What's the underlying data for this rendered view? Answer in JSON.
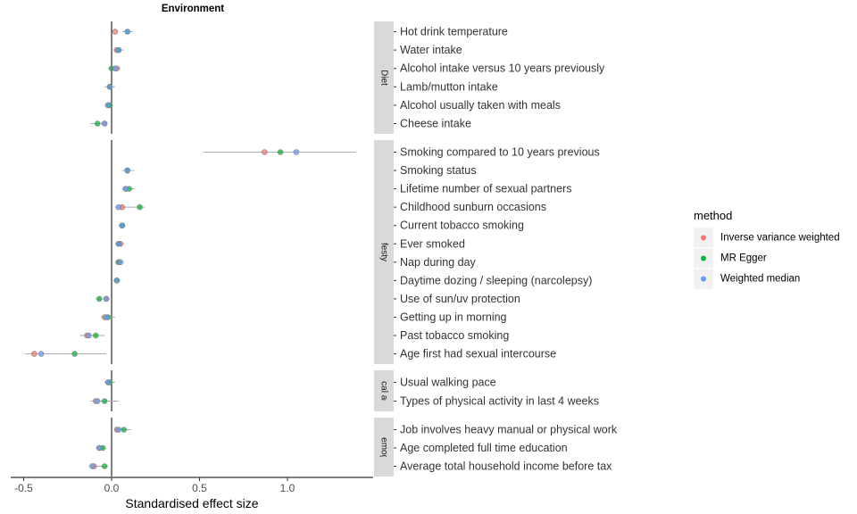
{
  "chart_data": {
    "type": "scatter",
    "title": "Environment",
    "xlabel": "Standardised effect size",
    "ylabel": "",
    "xlim": [
      -0.57,
      1.48
    ],
    "xticks": [
      -0.5,
      0.0,
      0.5,
      1.0
    ],
    "xtick_labels": [
      "-0.5",
      "0.0",
      "0.5",
      "1.0"
    ],
    "legend": {
      "title": "method",
      "placement": "right",
      "entries": [
        {
          "label": "Inverse variance weighted",
          "color": "#F8766D"
        },
        {
          "label": "MR Egger",
          "color": "#00BA38"
        },
        {
          "label": "Weighted median",
          "color": "#619CFF"
        }
      ]
    },
    "panels": [
      {
        "strip": "Diet",
        "rows": [
          {
            "label": "Hot drink temperature",
            "ivw": 0.02,
            "egger": 0.09,
            "wm": 0.09,
            "lo": 0.06,
            "hi": 0.12
          },
          {
            "label": "Water intake",
            "ivw": 0.03,
            "egger": 0.04,
            "wm": 0.04,
            "lo": 0.01,
            "hi": 0.07
          },
          {
            "label": "Alcohol intake versus 10 years previously",
            "ivw": 0.03,
            "egger": -0.0,
            "wm": 0.02,
            "lo": -0.02,
            "hi": 0.05
          },
          {
            "label": "Lamb/mutton intake",
            "ivw": -0.01,
            "egger": -0.01,
            "wm": -0.01,
            "lo": -0.04,
            "hi": 0.02
          },
          {
            "label": "Alcohol usually taken with meals",
            "ivw": -0.02,
            "egger": -0.01,
            "wm": -0.02,
            "lo": -0.04,
            "hi": 0.01
          },
          {
            "label": "Cheese intake",
            "ivw": -0.04,
            "egger": -0.08,
            "wm": -0.04,
            "lo": -0.12,
            "hi": -0.03
          }
        ]
      },
      {
        "strip": "Lifestyle",
        "rows": [
          {
            "label": "Smoking compared to 10 years previous",
            "ivw": 0.87,
            "egger": 0.96,
            "wm": 1.05,
            "lo": 0.52,
            "hi": 1.39
          },
          {
            "label": "Smoking status",
            "ivw": 0.09,
            "egger": 0.09,
            "wm": 0.09,
            "lo": 0.06,
            "hi": 0.13
          },
          {
            "label": "Lifetime number of sexual partners",
            "ivw": 0.08,
            "egger": 0.1,
            "wm": 0.08,
            "lo": 0.06,
            "hi": 0.13
          },
          {
            "label": "Childhood sunburn occasions",
            "ivw": 0.06,
            "egger": 0.16,
            "wm": 0.04,
            "lo": 0.02,
            "hi": 0.19
          },
          {
            "label": "Current tobacco smoking",
            "ivw": 0.06,
            "egger": 0.06,
            "wm": 0.06,
            "lo": 0.04,
            "hi": 0.08
          },
          {
            "label": "Ever smoked",
            "ivw": 0.05,
            "egger": 0.04,
            "wm": 0.04,
            "lo": 0.02,
            "hi": 0.07
          },
          {
            "label": "Nap during day",
            "ivw": 0.04,
            "egger": 0.04,
            "wm": 0.05,
            "lo": 0.02,
            "hi": 0.07
          },
          {
            "label": "Daytime dozing / sleeping (narcolepsy)",
            "ivw": 0.03,
            "egger": 0.03,
            "wm": 0.03,
            "lo": 0.01,
            "hi": 0.05
          },
          {
            "label": "Use of sun/uv protection",
            "ivw": -0.03,
            "egger": -0.07,
            "wm": -0.03,
            "lo": -0.09,
            "hi": -0.01
          },
          {
            "label": "Getting up in morning",
            "ivw": -0.04,
            "egger": -0.02,
            "wm": -0.03,
            "lo": -0.06,
            "hi": 0.02
          },
          {
            "label": "Past tobacco smoking",
            "ivw": -0.14,
            "egger": -0.09,
            "wm": -0.13,
            "lo": -0.18,
            "hi": -0.04
          },
          {
            "label": "Age first had sexual intercourse",
            "ivw": -0.44,
            "egger": -0.21,
            "wm": -0.4,
            "lo": -0.49,
            "hi": -0.03
          }
        ]
      },
      {
        "strip": "Physical activity",
        "rows": [
          {
            "label": "Usual walking pace",
            "ivw": -0.02,
            "egger": -0.01,
            "wm": -0.02,
            "lo": -0.04,
            "hi": 0.02
          },
          {
            "label": "Types of physical activity in last 4 weeks",
            "ivw": -0.09,
            "egger": -0.04,
            "wm": -0.08,
            "lo": -0.12,
            "hi": 0.04
          }
        ]
      },
      {
        "strip": "Sociodemographic",
        "rows": [
          {
            "label": "Job involves heavy manual or physical work",
            "ivw": 0.03,
            "egger": 0.07,
            "wm": 0.04,
            "lo": 0.02,
            "hi": 0.11
          },
          {
            "label": "Age completed full time education",
            "ivw": -0.07,
            "egger": -0.05,
            "wm": -0.07,
            "lo": -0.09,
            "hi": -0.04
          },
          {
            "label": "Average total household income before tax",
            "ivw": -0.1,
            "egger": -0.04,
            "wm": -0.11,
            "lo": -0.13,
            "hi": -0.02
          }
        ]
      }
    ]
  }
}
